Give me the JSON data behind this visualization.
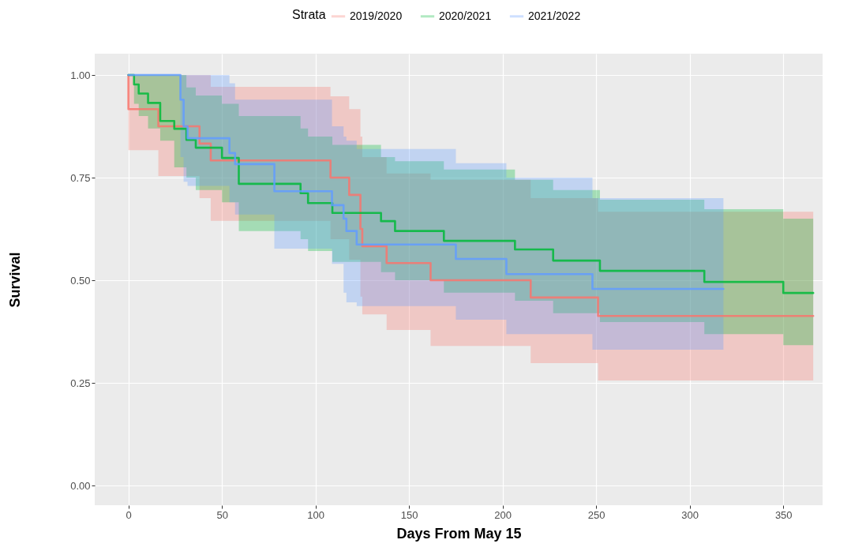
{
  "chart_data": {
    "type": "step",
    "xlabel": "Days From May 15",
    "ylabel": "Survival",
    "legend_title": "Strata",
    "legend": "top",
    "grid": true,
    "xlim": [
      -18,
      371
    ],
    "xticks": [
      0,
      50,
      100,
      150,
      200,
      250,
      300,
      350
    ],
    "ylim": [
      -0.048,
      1.052
    ],
    "yticks": [
      {
        "value": 0,
        "label": "0.00"
      },
      {
        "value": 0.25,
        "label": "0.25"
      },
      {
        "value": 0.5,
        "label": "0.50"
      },
      {
        "value": 0.75,
        "label": "0.75"
      },
      {
        "value": 1,
        "label": "1.00"
      }
    ],
    "series": [
      {
        "name": "2019/2020",
        "color": "#f8766d",
        "x": [
          0,
          0,
          16,
          38,
          44,
          108,
          118,
          124,
          125,
          138,
          161.5,
          215,
          251,
          366
        ],
        "values": [
          1,
          0.917,
          0.875,
          0.833,
          0.792,
          0.75,
          0.708,
          0.625,
          0.583,
          0.542,
          0.5,
          0.458,
          0.413,
          0.413
        ],
        "lower": [
          1,
          0.817,
          0.754,
          0.7,
          0.645,
          0.6,
          0.55,
          0.46,
          0.417,
          0.379,
          0.34,
          0.298,
          0.256,
          0.256
        ],
        "upper": [
          1,
          1,
          1,
          1,
          0.971,
          0.948,
          0.917,
          0.85,
          0.8,
          0.76,
          0.745,
          0.7,
          0.667,
          0.667
        ]
      },
      {
        "name": "2020/2021",
        "color": "#00ba38",
        "x": [
          0,
          3,
          5.5,
          10.5,
          17,
          24.5,
          31,
          36,
          50,
          59,
          92,
          96,
          109,
          135,
          142.5,
          168.6,
          206.6,
          227,
          252,
          307.8,
          350,
          366
        ],
        "values": [
          1,
          0.977,
          0.955,
          0.932,
          0.888,
          0.869,
          0.842,
          0.823,
          0.798,
          0.735,
          0.712,
          0.688,
          0.664,
          0.644,
          0.62,
          0.596,
          0.575,
          0.548,
          0.523,
          0.496,
          0.469,
          0.469
        ],
        "lower": [
          1,
          0.93,
          0.9,
          0.87,
          0.84,
          0.775,
          0.75,
          0.72,
          0.69,
          0.62,
          0.6,
          0.571,
          0.545,
          0.52,
          0.5,
          0.47,
          0.45,
          0.42,
          0.398,
          0.369,
          0.342,
          0.342
        ],
        "upper": [
          1,
          1,
          1,
          1,
          1,
          1,
          0.97,
          0.95,
          0.93,
          0.9,
          0.87,
          0.85,
          0.83,
          0.8,
          0.79,
          0.77,
          0.745,
          0.72,
          0.696,
          0.673,
          0.65,
          0.65
        ]
      },
      {
        "name": "2021/2022",
        "color": "#619cff",
        "x": [
          0,
          27.8,
          29.5,
          31.6,
          54,
          57,
          78,
          108.8,
          115,
          116.5,
          122,
          175,
          202,
          248,
          318
        ],
        "values": [
          1,
          0.94,
          0.875,
          0.846,
          0.81,
          0.783,
          0.717,
          0.683,
          0.65,
          0.62,
          0.587,
          0.552,
          0.515,
          0.479,
          0.479
        ],
        "lower": [
          1,
          0.8,
          0.74,
          0.73,
          0.69,
          0.66,
          0.577,
          0.54,
          0.47,
          0.446,
          0.437,
          0.404,
          0.369,
          0.331,
          0.331
        ],
        "upper": [
          1,
          1,
          1,
          1,
          0.98,
          0.94,
          0.94,
          0.875,
          0.85,
          0.84,
          0.82,
          0.785,
          0.75,
          0.7,
          0.7
        ]
      }
    ]
  }
}
